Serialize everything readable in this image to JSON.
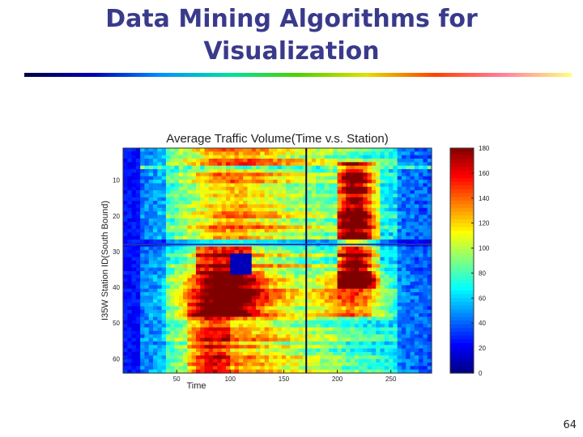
{
  "slide": {
    "title_line1": "Data Mining Algorithms for",
    "title_line2": "Visualization",
    "page_number": "64"
  },
  "chart_data": {
    "type": "heatmap",
    "title": "Average Traffic Volume(Time v.s. Station)",
    "xlabel": "Time",
    "ylabel": "I35W Station ID(South Bound)",
    "xlim": [
      0,
      288
    ],
    "ylim": [
      1,
      64
    ],
    "xticks": [
      50,
      100,
      150,
      200,
      250
    ],
    "xtick_labels": [
      "50",
      "100",
      "150",
      "200",
      "250"
    ],
    "yticks": [
      10,
      20,
      30,
      40,
      50,
      60
    ],
    "ytick_labels": [
      "10",
      "20",
      "30",
      "40",
      "50",
      "60"
    ],
    "colorbar": {
      "range": [
        0,
        180
      ],
      "ticks": [
        0,
        20,
        40,
        60,
        80,
        100,
        120,
        140,
        160,
        180
      ],
      "tick_labels": [
        "0",
        "20",
        "40",
        "60",
        "80",
        "100",
        "120",
        "140",
        "160",
        "180"
      ],
      "colormap": "jet"
    },
    "reference_lines": {
      "time": 171,
      "station": 28
    },
    "description_colors": {
      "low": "#00008f",
      "mid": "#00ff80",
      "high": "#ff0000"
    }
  }
}
